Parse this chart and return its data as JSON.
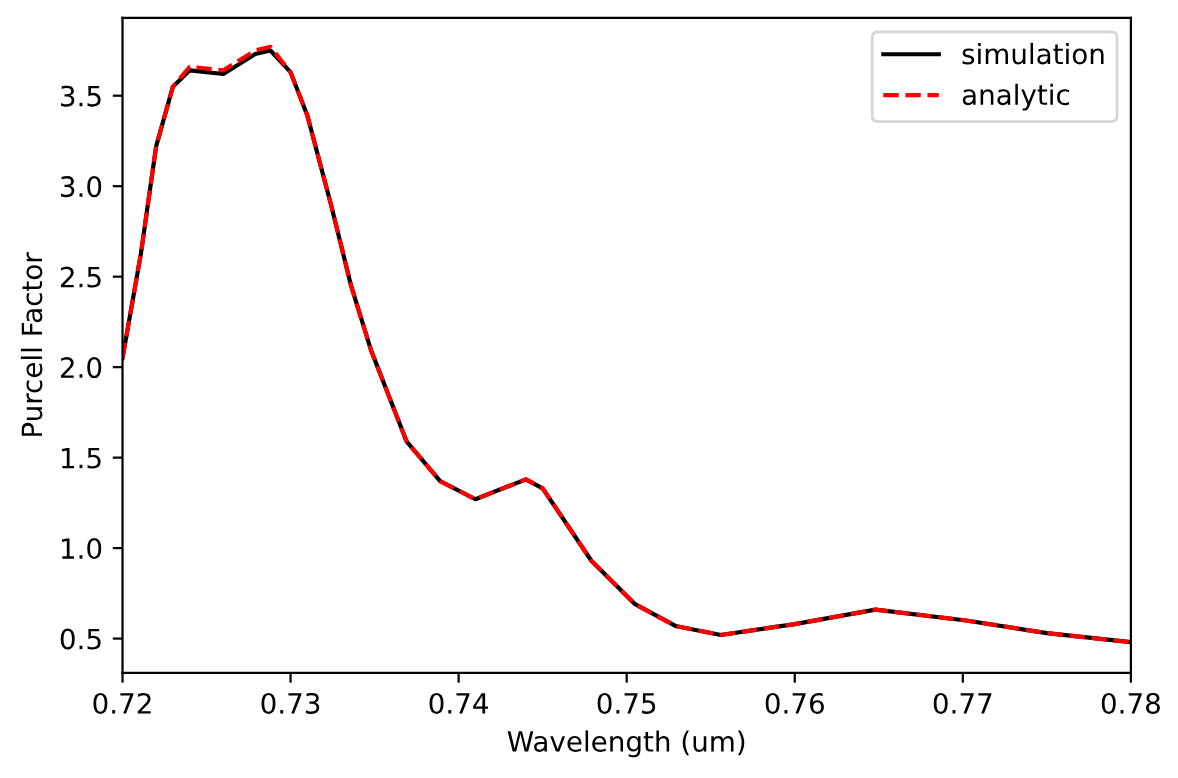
{
  "chart_data": {
    "type": "line",
    "xlabel": "Wavelength (um)",
    "ylabel": "Purcell Factor",
    "xlim": [
      0.72,
      0.78
    ],
    "xticks": [
      0.72,
      0.73,
      0.74,
      0.75,
      0.76,
      0.77,
      0.78
    ],
    "ylim": [
      0.31,
      3.93
    ],
    "yticks": [
      0.5,
      {
        "value": 1,
        "label": "1.0"
      },
      1.5,
      {
        "value": 2,
        "label": "2.0"
      },
      2.5,
      {
        "value": 3,
        "label": "3.0"
      },
      3.5
    ],
    "x": [
      0.72,
      0.7211,
      0.722,
      0.723,
      0.724,
      0.726,
      0.7279,
      0.7288,
      0.73,
      0.731,
      0.7324,
      0.7336,
      0.7348,
      0.7369,
      0.7389,
      0.741,
      0.744,
      0.745,
      0.7479,
      0.7505,
      0.7529,
      0.7556,
      0.76,
      0.7648,
      0.7702,
      0.775,
      0.78
    ],
    "series": [
      {
        "name": "simulation",
        "color": "#000000",
        "line_style": "solid",
        "values": [
          2.05,
          2.63,
          3.22,
          3.55,
          3.64,
          3.62,
          3.73,
          3.75,
          3.63,
          3.39,
          2.9,
          2.45,
          2.09,
          1.59,
          1.37,
          1.27,
          1.38,
          1.33,
          0.93,
          0.69,
          0.57,
          0.52,
          0.58,
          0.66,
          0.6,
          0.53,
          0.48
        ]
      },
      {
        "name": "analytic",
        "color": "#ff0000",
        "line_style": "dashed",
        "values": [
          2.05,
          2.63,
          3.22,
          3.55,
          3.66,
          3.64,
          3.75,
          3.77,
          3.63,
          3.39,
          2.9,
          2.45,
          2.09,
          1.59,
          1.37,
          1.27,
          1.38,
          1.33,
          0.93,
          0.69,
          0.57,
          0.52,
          0.58,
          0.66,
          0.6,
          0.53,
          0.48
        ]
      }
    ],
    "legend": "top right",
    "grid": false
  }
}
